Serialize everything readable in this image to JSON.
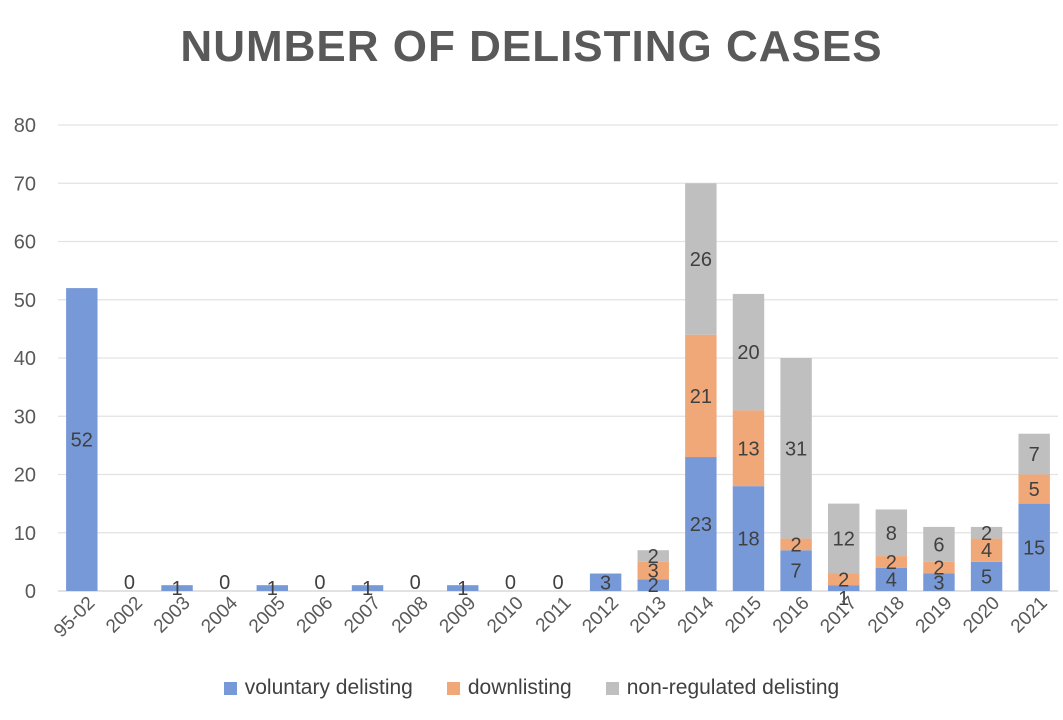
{
  "chart_data": {
    "type": "bar",
    "stacked": true,
    "title": "NUMBER OF DELISTING CASES",
    "xlabel": "",
    "ylabel": "",
    "ylim": [
      0,
      80
    ],
    "yticks": [
      0,
      10,
      20,
      30,
      40,
      50,
      60,
      70,
      80
    ],
    "grid": true,
    "legend_position": "bottom",
    "categories": [
      "95-02",
      "2002",
      "2003",
      "2004",
      "2005",
      "2006",
      "2007",
      "2008",
      "2009",
      "2010",
      "2011",
      "2012",
      "2013",
      "2014",
      "2015",
      "2016",
      "2017",
      "2018",
      "2019",
      "2020",
      "2021"
    ],
    "series": [
      {
        "name": "voluntary delisting",
        "color": "#7799d8",
        "values": [
          52,
          0,
          1,
          0,
          1,
          0,
          1,
          0,
          1,
          0,
          0,
          3,
          2,
          23,
          18,
          7,
          1,
          4,
          3,
          5,
          15
        ],
        "labels": [
          "52",
          "0",
          "1",
          "0",
          "1",
          "0",
          "1",
          "0",
          "1",
          "0",
          "0",
          "3",
          "2",
          "23",
          "18",
          "7",
          "1",
          "4",
          "3",
          "5",
          "15"
        ]
      },
      {
        "name": "downlisting",
        "color": "#f0a878",
        "values": [
          0,
          0,
          0,
          0,
          0,
          0,
          0,
          0,
          0,
          0,
          0,
          0,
          3,
          21,
          13,
          2,
          2,
          2,
          2,
          4,
          5
        ],
        "labels": [
          "",
          "",
          "",
          "",
          "",
          "",
          "",
          "",
          "",
          "",
          "",
          "",
          "3",
          "21",
          "13",
          "2",
          "2",
          "2",
          "2",
          "4",
          "5"
        ]
      },
      {
        "name": "non-regulated delisting",
        "color": "#bfbfbf",
        "values": [
          0,
          0,
          0,
          0,
          0,
          0,
          0,
          0,
          0,
          0,
          0,
          0,
          2,
          26,
          20,
          31,
          12,
          8,
          6,
          2,
          7
        ],
        "labels": [
          "",
          "",
          "",
          "",
          "",
          "",
          "",
          "",
          "",
          "",
          "",
          "",
          "2",
          "26",
          "20",
          "31",
          "12",
          "8",
          "6",
          "2",
          "7"
        ]
      }
    ]
  }
}
